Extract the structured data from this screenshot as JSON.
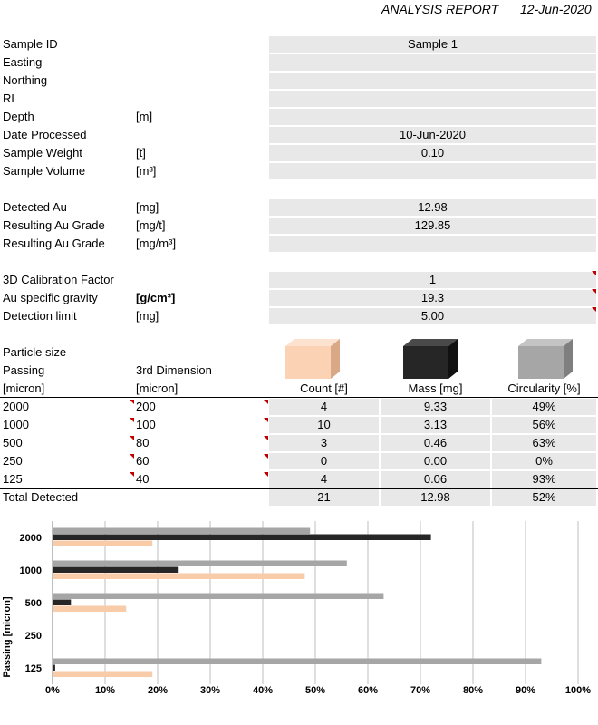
{
  "header": {
    "title": "ANALYSIS REPORT",
    "date": "12-Jun-2020"
  },
  "info": [
    {
      "label": "Sample ID",
      "unit": "",
      "value": "Sample 1"
    },
    {
      "label": "Easting",
      "unit": "",
      "value": ""
    },
    {
      "label": "Northing",
      "unit": "",
      "value": ""
    },
    {
      "label": "RL",
      "unit": "",
      "value": ""
    },
    {
      "label": "Depth",
      "unit": "[m]",
      "value": ""
    },
    {
      "label": "Date Processed",
      "unit": "",
      "value": "10-Jun-2020"
    },
    {
      "label": "Sample Weight",
      "unit": "[t]",
      "value": "0.10"
    },
    {
      "label": "Sample Volume",
      "unit": "[m³]",
      "value": ""
    }
  ],
  "gold": [
    {
      "label": "Detected Au",
      "unit": "[mg]",
      "value": "12.98"
    },
    {
      "label": "Resulting Au Grade",
      "unit": "[mg/t]",
      "value": "129.85"
    },
    {
      "label": "Resulting Au Grade",
      "unit": "[mg/m³]",
      "value": ""
    }
  ],
  "calibration": [
    {
      "label": "3D Calibration Factor",
      "unit": "",
      "value": "1"
    },
    {
      "label": "Au specific gravity",
      "unit": "[g/cm³]",
      "value": "19.3"
    },
    {
      "label": "Detection limit",
      "unit": "[mg]",
      "value": "5.00"
    }
  ],
  "particle": {
    "title": "Particle size",
    "passing_label": "Passing",
    "third_dim_label": "3rd Dimension",
    "passing_unit": "[micron]",
    "third_dim_unit": "[micron]",
    "col_count": "Count [#]",
    "col_mass": "Mass [mg]",
    "col_circ": "Circularity [%]",
    "rows": [
      {
        "passing": "2000",
        "third": "200",
        "count": "4",
        "mass": "9.33",
        "circ": "49%"
      },
      {
        "passing": "1000",
        "third": "100",
        "count": "10",
        "mass": "3.13",
        "circ": "56%"
      },
      {
        "passing": "500",
        "third": "80",
        "count": "3",
        "mass": "0.46",
        "circ": "63%"
      },
      {
        "passing": "250",
        "third": "60",
        "count": "0",
        "mass": "0.00",
        "circ": "0%"
      },
      {
        "passing": "125",
        "third": "40",
        "count": "4",
        "mass": "0.06",
        "circ": "93%"
      }
    ],
    "total": {
      "label": "Total Detected",
      "count": "21",
      "mass": "12.98",
      "circ": "52%"
    }
  },
  "colors": {
    "count": "#f8cba9",
    "mass": "#262626",
    "circularity": "#a6a6a6",
    "flag": "#c00000",
    "fill": "#e8e8e8"
  },
  "chart_data": {
    "type": "bar",
    "orientation": "horizontal",
    "categories": [
      "2000",
      "1000",
      "500",
      "250",
      "125"
    ],
    "series": [
      {
        "key": "circularity",
        "values": [
          49,
          56,
          63,
          0,
          93
        ]
      },
      {
        "key": "mass",
        "values": [
          72,
          24,
          3.5,
          0,
          0.5
        ]
      },
      {
        "key": "count",
        "values": [
          19,
          48,
          14,
          0,
          19
        ]
      }
    ],
    "ylabel": "Passing [micron]",
    "xlim": [
      0,
      100
    ],
    "xticks": [
      "0%",
      "10%",
      "20%",
      "30%",
      "40%",
      "50%",
      "60%",
      "70%",
      "80%",
      "90%",
      "100%"
    ],
    "grid": "vertical"
  }
}
